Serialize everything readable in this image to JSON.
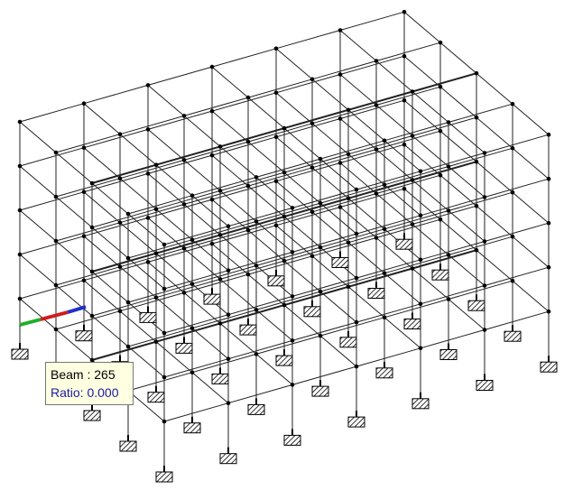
{
  "tooltip": {
    "beam": "Beam : 265",
    "ratio": "Ratio: 0.000"
  }
}
